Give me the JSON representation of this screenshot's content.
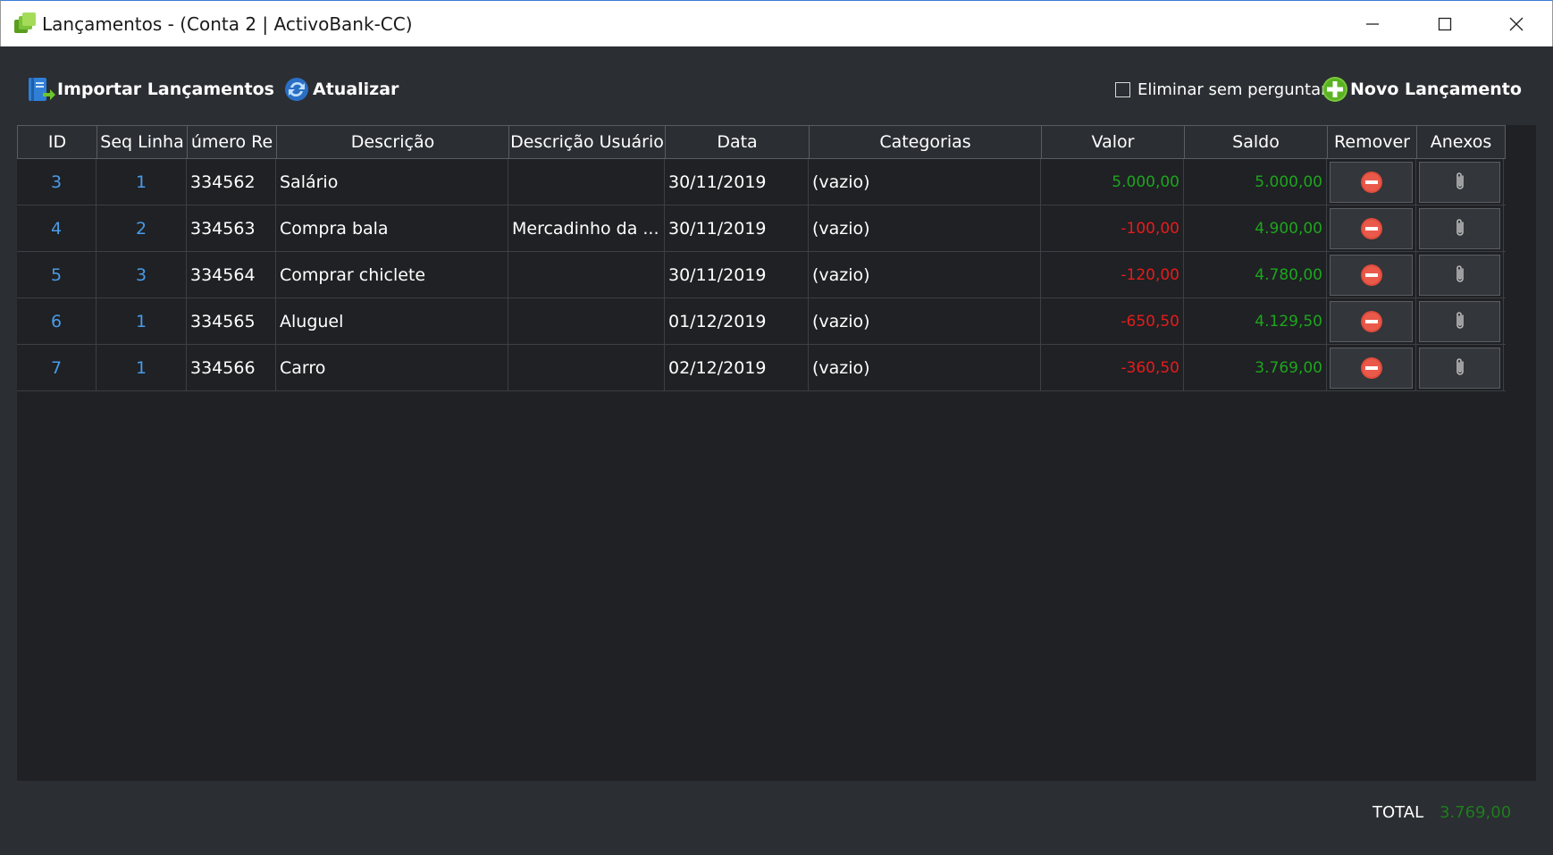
{
  "window": {
    "title": "Lançamentos - (Conta 2 | ActivoBank-CC)"
  },
  "toolbar": {
    "import_label": "Importar Lançamentos",
    "refresh_label": "Atualizar",
    "delete_checkbox_label": "Eliminar sem perguntar",
    "delete_checkbox_checked": false,
    "new_entry_label": "Novo Lançamento"
  },
  "table": {
    "columns": [
      "ID",
      "Seq Linha",
      "úmero Re",
      "Descrição",
      "Descrição Usuário",
      "Data",
      "Categorias",
      "Valor",
      "Saldo",
      "Remover",
      "Anexos"
    ],
    "rows": [
      {
        "id": "3",
        "seq": "1",
        "numero": "334562",
        "descricao": "Salário",
        "descricao_usuario": "",
        "data": "30/11/2019",
        "categorias": "(vazio)",
        "valor": "5.000,00",
        "valor_sign": "pos",
        "saldo": "5.000,00"
      },
      {
        "id": "4",
        "seq": "2",
        "numero": "334563",
        "descricao": "Compra bala",
        "descricao_usuario": "Mercadinho da ...",
        "data": "30/11/2019",
        "categorias": "(vazio)",
        "valor": "-100,00",
        "valor_sign": "neg",
        "saldo": "4.900,00"
      },
      {
        "id": "5",
        "seq": "3",
        "numero": "334564",
        "descricao": "Comprar chiclete",
        "descricao_usuario": "",
        "data": "30/11/2019",
        "categorias": "(vazio)",
        "valor": "-120,00",
        "valor_sign": "neg",
        "saldo": "4.780,00"
      },
      {
        "id": "6",
        "seq": "1",
        "numero": "334565",
        "descricao": "Aluguel",
        "descricao_usuario": "",
        "data": "01/12/2019",
        "categorias": "(vazio)",
        "valor": "-650,50",
        "valor_sign": "neg",
        "saldo": "4.129,50"
      },
      {
        "id": "7",
        "seq": "1",
        "numero": "334566",
        "descricao": "Carro",
        "descricao_usuario": "",
        "data": "02/12/2019",
        "categorias": "(vazio)",
        "valor": "-360,50",
        "valor_sign": "neg",
        "saldo": "3.769,00"
      }
    ]
  },
  "footer": {
    "total_label": "TOTAL",
    "total_value": "3.769,00"
  },
  "colors": {
    "positive": "#1ea51e",
    "negative": "#e81b1b",
    "link": "#4a9be8",
    "background": "#2b2e32",
    "table_background": "#1f2124"
  },
  "icons": {
    "app": "app-icon",
    "import": "import-icon",
    "refresh": "refresh-icon",
    "new_entry": "plus-circle-icon",
    "remove": "remove-icon",
    "attachment": "paperclip-icon"
  }
}
